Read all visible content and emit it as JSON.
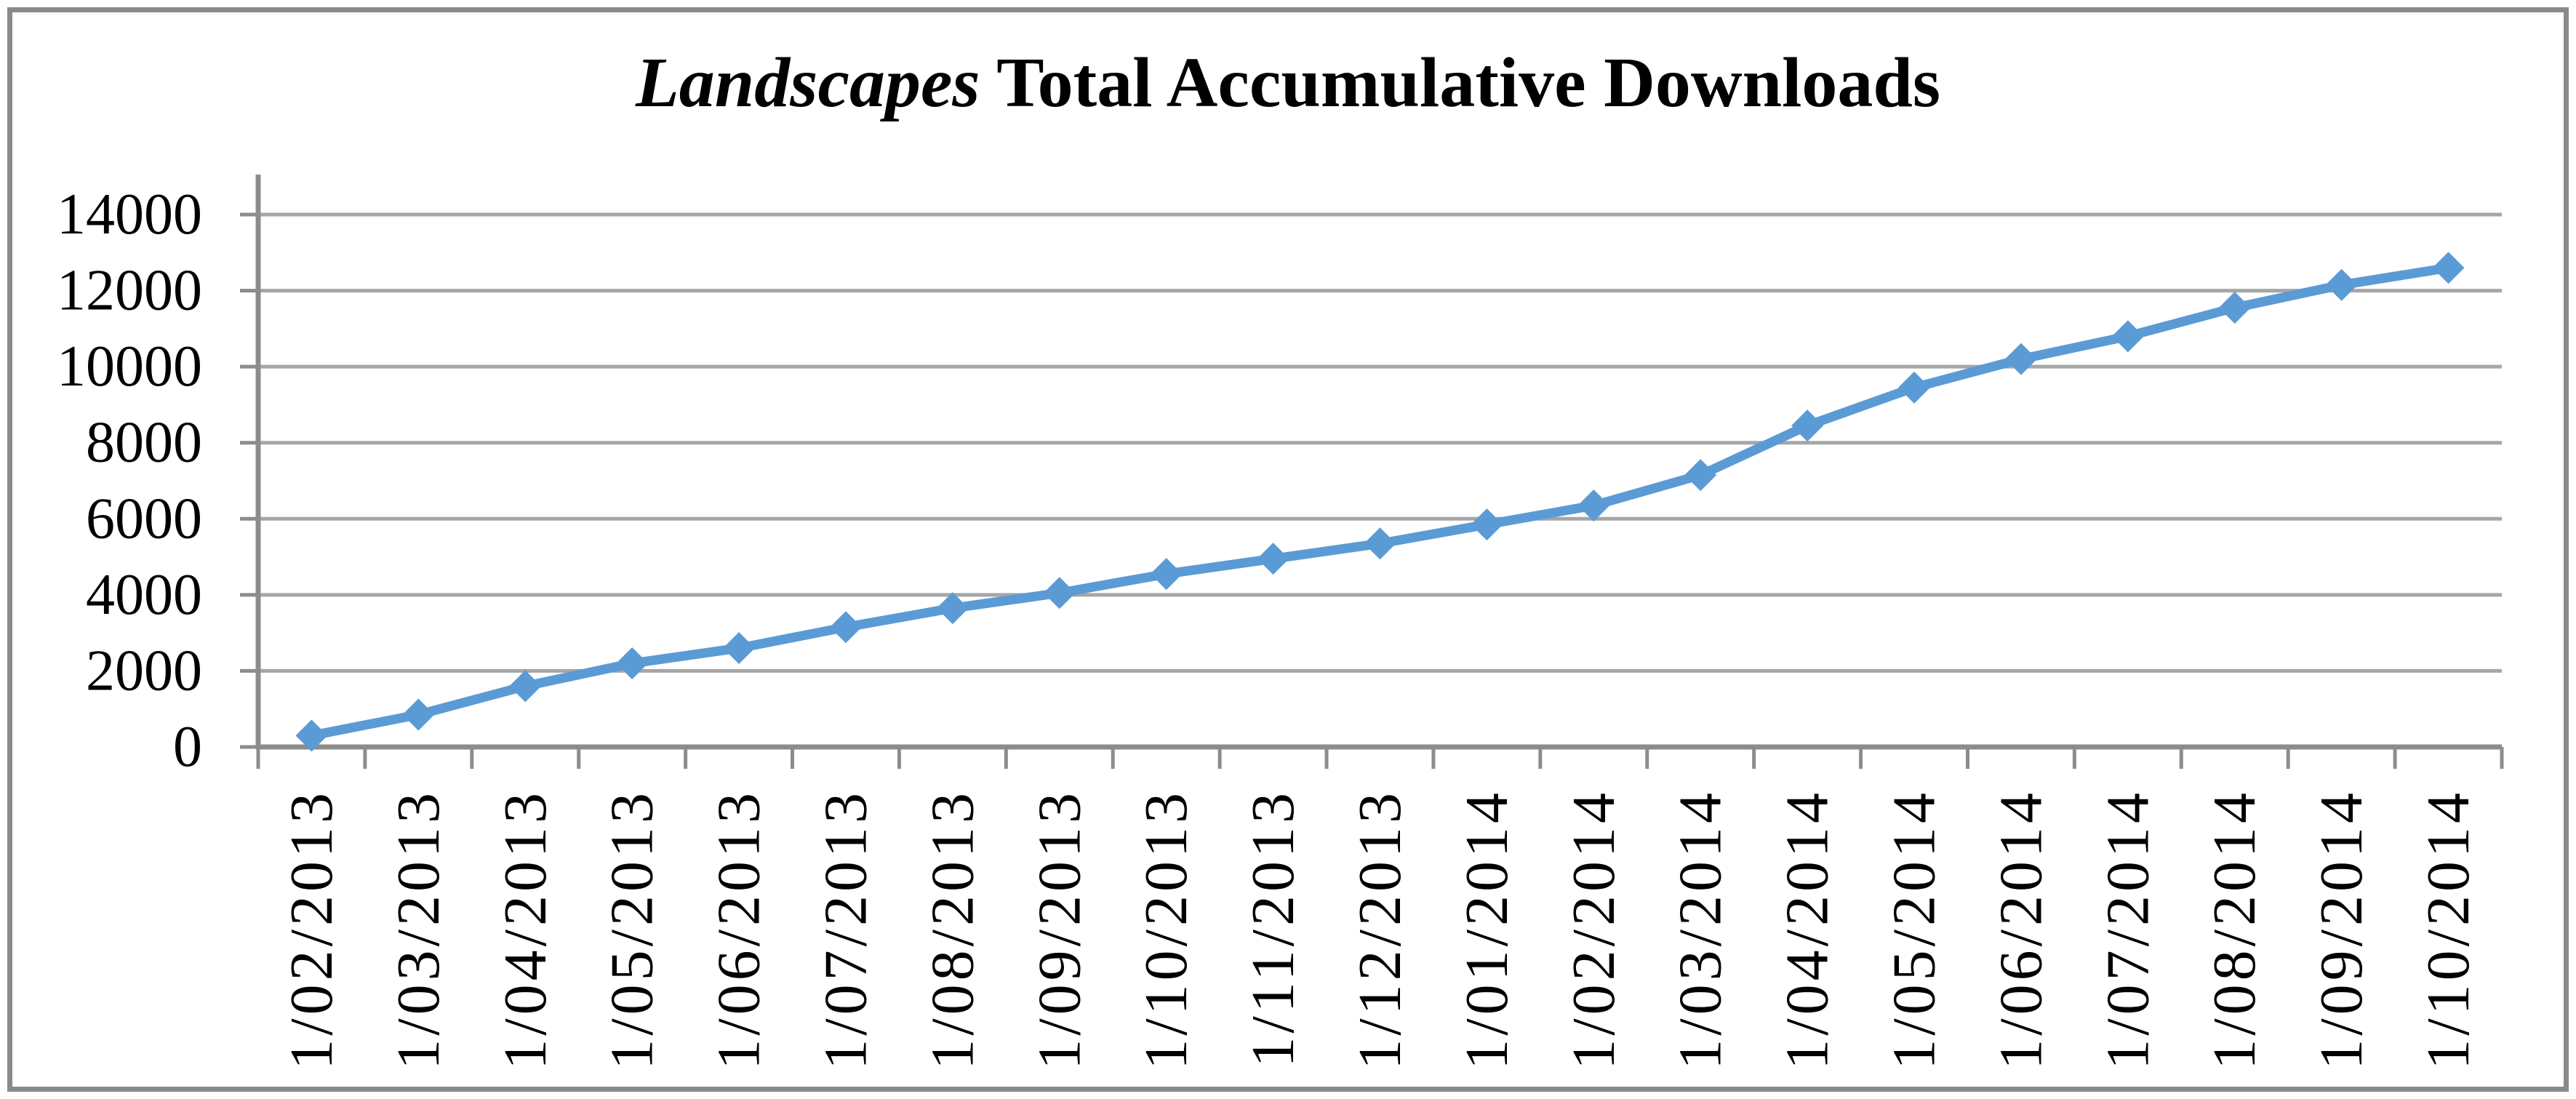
{
  "title": {
    "italic": "Landscapes",
    "rest": " Total Accumulative Downloads"
  },
  "chart_data": {
    "type": "line",
    "title": "Landscapes Total Accumulative Downloads",
    "title_italic_part": "Landscapes",
    "categories": [
      "1/02/2013",
      "1/03/2013",
      "1/04/2013",
      "1/05/2013",
      "1/06/2013",
      "1/07/2013",
      "1/08/2013",
      "1/09/2013",
      "1/10/2013",
      "1/11/2013",
      "1/12/2013",
      "1/01/2014",
      "1/02/2014",
      "1/03/2014",
      "1/04/2014",
      "1/05/2014",
      "1/06/2014",
      "1/07/2014",
      "1/08/2014",
      "1/09/2014",
      "1/10/2014"
    ],
    "series": [
      {
        "name": "Total accumulative downloads",
        "values": [
          300,
          850,
          1600,
          2200,
          2600,
          3150,
          3650,
          4050,
          4550,
          4950,
          5350,
          5850,
          6350,
          7150,
          8450,
          9450,
          10200,
          10800,
          11550,
          12150,
          12600
        ]
      }
    ],
    "xlabel": "",
    "ylabel": "",
    "ylim": [
      0,
      14000
    ],
    "yticks": [
      0,
      2000,
      4000,
      6000,
      8000,
      10000,
      12000,
      14000
    ],
    "grid": "horizontal-only",
    "legend": "none",
    "x_tick_label_rotation_deg": 90,
    "marker": "diamond",
    "colors": {
      "series_line": "#5B9BD5",
      "gridline": "#A6A6A6",
      "axis": "#8C8C8C",
      "tick_label": "#000000",
      "chart_border": "#8A8A8A",
      "background": "#FFFFFF"
    }
  }
}
